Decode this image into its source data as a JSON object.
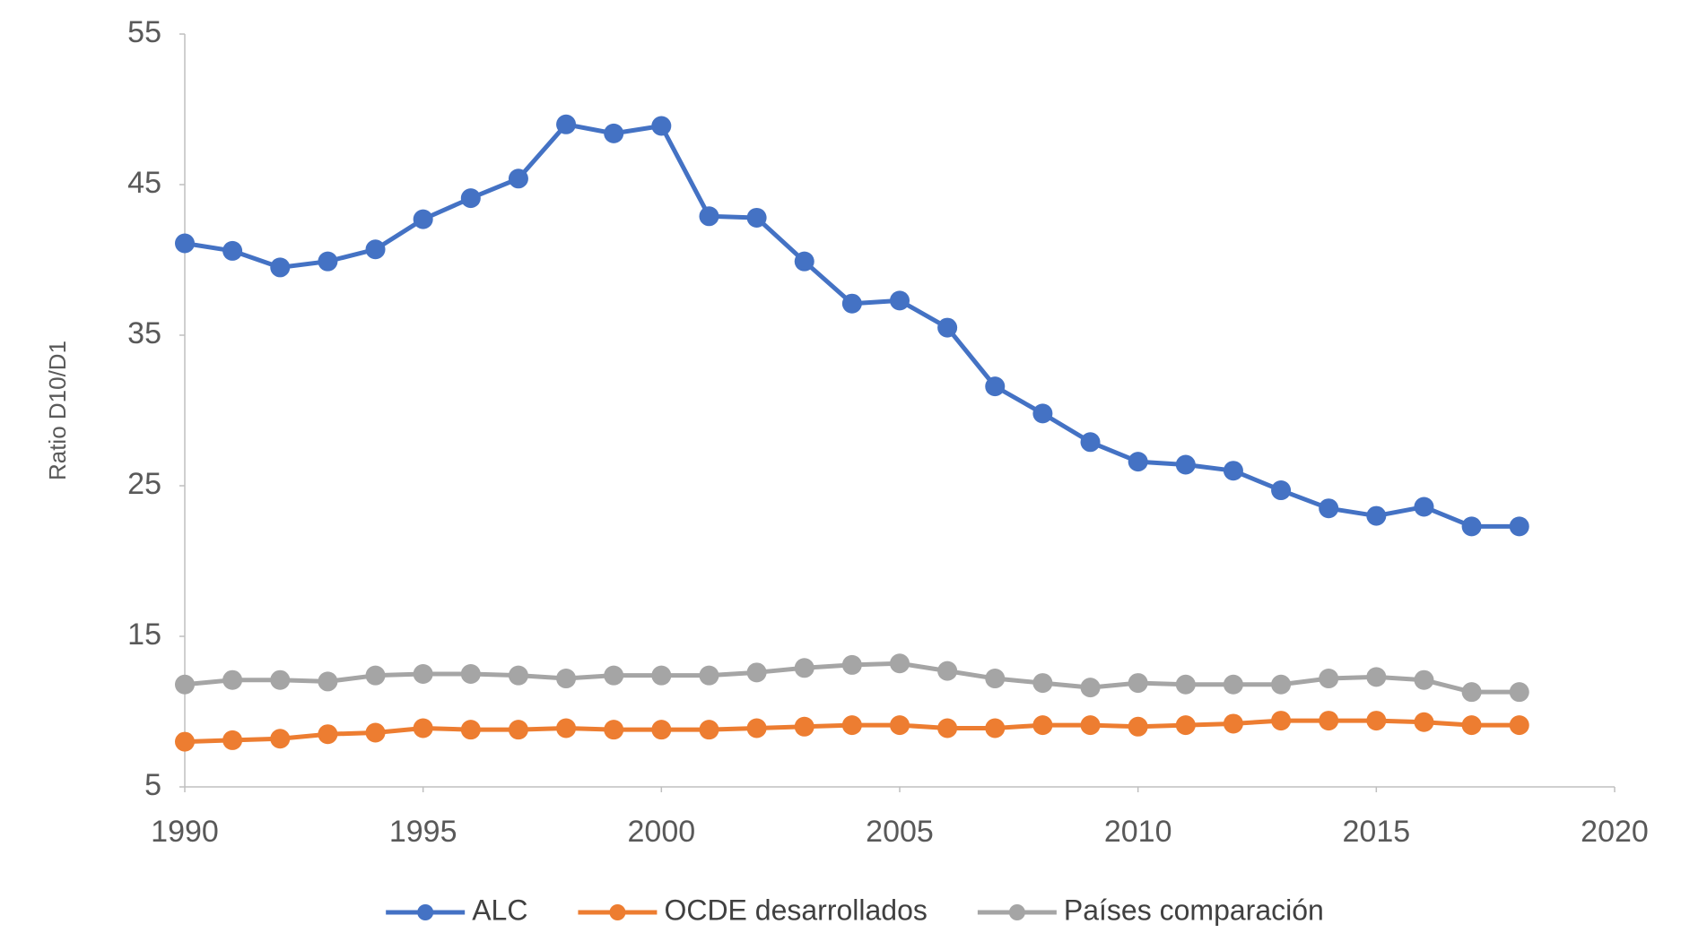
{
  "chart_data": {
    "type": "line",
    "y_label": "Ratio D10/D1",
    "x": [
      1990,
      1991,
      1992,
      1993,
      1994,
      1995,
      1996,
      1997,
      1998,
      1999,
      2000,
      2001,
      2002,
      2003,
      2004,
      2005,
      2006,
      2007,
      2008,
      2009,
      2010,
      2011,
      2012,
      2013,
      2014,
      2015,
      2016,
      2017,
      2018
    ],
    "series": [
      {
        "name": "ALC",
        "color": "#4472c4",
        "values": [
          41.1,
          40.6,
          39.5,
          39.9,
          40.7,
          42.7,
          44.1,
          45.4,
          49.0,
          48.4,
          48.9,
          42.9,
          42.8,
          39.9,
          37.1,
          37.3,
          35.5,
          31.6,
          29.8,
          27.9,
          26.6,
          26.4,
          26.0,
          24.7,
          23.5,
          23.0,
          23.6,
          22.3,
          22.3
        ]
      },
      {
        "name": "OCDE desarrollados",
        "color": "#ed7d31",
        "values": [
          8.0,
          8.1,
          8.2,
          8.5,
          8.6,
          8.9,
          8.8,
          8.8,
          8.9,
          8.8,
          8.8,
          8.8,
          8.9,
          9.0,
          9.1,
          9.1,
          8.9,
          8.9,
          9.1,
          9.1,
          9.0,
          9.1,
          9.2,
          9.4,
          9.4,
          9.4,
          9.3,
          9.1,
          9.1
        ]
      },
      {
        "name": "Países comparación",
        "color": "#a5a5a5",
        "values": [
          11.8,
          12.1,
          12.1,
          12.0,
          12.4,
          12.5,
          12.5,
          12.4,
          12.2,
          12.4,
          12.4,
          12.4,
          12.6,
          12.9,
          13.1,
          13.2,
          12.7,
          12.2,
          11.9,
          11.6,
          11.9,
          11.8,
          11.8,
          11.8,
          12.2,
          12.3,
          12.1,
          11.3,
          11.3
        ]
      }
    ],
    "xlim": [
      1990,
      2020
    ],
    "xticks": [
      1990,
      1995,
      2000,
      2005,
      2010,
      2015,
      2020
    ],
    "ylim": [
      5,
      55
    ],
    "yticks": [
      5,
      15,
      25,
      35,
      45,
      55
    ],
    "grid": false,
    "legend": "bottom"
  }
}
